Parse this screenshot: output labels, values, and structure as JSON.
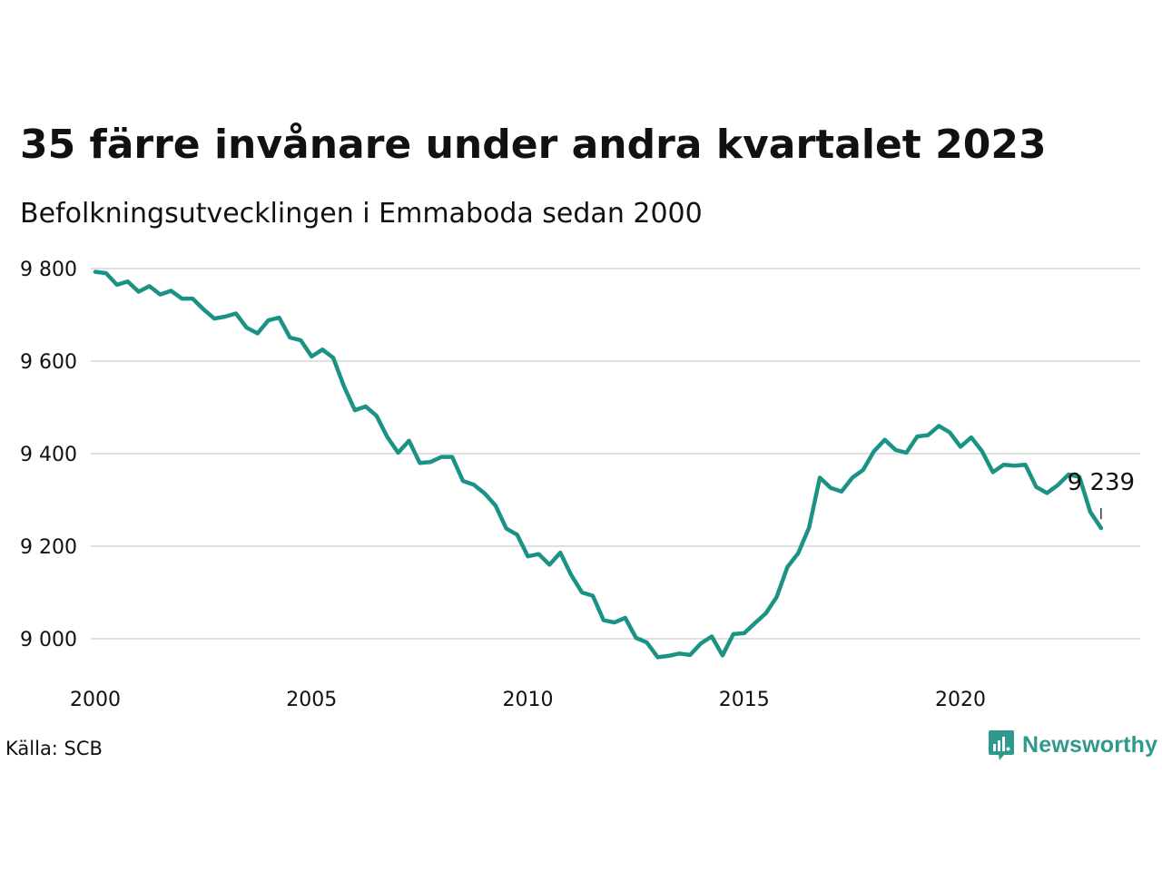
{
  "header": {
    "title": "35 färre invånare under andra kvartalet 2023",
    "subtitle": "Befolkningsutvecklingen i Emmaboda sedan 2000"
  },
  "footer": {
    "source": "Källa: SCB",
    "logo_text": "Newsworthy",
    "logo_icon": "bar-chart-speech-bubble-icon"
  },
  "colors": {
    "line": "#1a9384",
    "grid": "#e0e0e0",
    "text": "#111111",
    "logo": "#2e9a8d"
  },
  "chart_data": {
    "type": "line",
    "title": "35 färre invånare under andra kvartalet 2023",
    "subtitle": "Befolkningsutvecklingen i Emmaboda sedan 2000",
    "xlabel": "",
    "ylabel": "",
    "xlim": [
      2000,
      2024
    ],
    "ylim": [
      8920,
      9820
    ],
    "x_ticks": [
      2000,
      2005,
      2010,
      2015,
      2020
    ],
    "x_tick_labels": [
      "2000",
      "2005",
      "2010",
      "2015",
      "2020"
    ],
    "y_ticks": [
      9000,
      9200,
      9400,
      9600,
      9800
    ],
    "y_tick_labels": [
      "9 000",
      "9 200",
      "9 400",
      "9 600",
      "9 800"
    ],
    "grid": "horizontal",
    "legend": "none",
    "annotation": {
      "label": "9 239",
      "x": "2023-Q2",
      "y": 9239
    },
    "series": [
      {
        "x": [
          "2000-Q1",
          "2000-Q2",
          "2000-Q3",
          "2000-Q4",
          "2001-Q1",
          "2001-Q2",
          "2001-Q3",
          "2001-Q4",
          "2002-Q1",
          "2002-Q2",
          "2002-Q3",
          "2002-Q4",
          "2003-Q1",
          "2003-Q2",
          "2003-Q3",
          "2003-Q4",
          "2004-Q1",
          "2004-Q2",
          "2004-Q3",
          "2004-Q4",
          "2005-Q1",
          "2005-Q2",
          "2005-Q3",
          "2005-Q4",
          "2006-Q1",
          "2006-Q2",
          "2006-Q3",
          "2006-Q4",
          "2007-Q1",
          "2007-Q2",
          "2007-Q3",
          "2007-Q4",
          "2008-Q1",
          "2008-Q2",
          "2008-Q3",
          "2008-Q4",
          "2009-Q1",
          "2009-Q2",
          "2009-Q3",
          "2009-Q4",
          "2010-Q1",
          "2010-Q2",
          "2010-Q3",
          "2010-Q4",
          "2011-Q1",
          "2011-Q2",
          "2011-Q3",
          "2011-Q4",
          "2012-Q1",
          "2012-Q2",
          "2012-Q3",
          "2012-Q4",
          "2013-Q1",
          "2013-Q2",
          "2013-Q3",
          "2013-Q4",
          "2014-Q1",
          "2014-Q2",
          "2014-Q3",
          "2014-Q4",
          "2015-Q1",
          "2015-Q2",
          "2015-Q3",
          "2015-Q4",
          "2016-Q1",
          "2016-Q2",
          "2016-Q3",
          "2016-Q4",
          "2017-Q1",
          "2017-Q2",
          "2017-Q3",
          "2017-Q4",
          "2018-Q1",
          "2018-Q2",
          "2018-Q3",
          "2018-Q4",
          "2019-Q1",
          "2019-Q2",
          "2019-Q3",
          "2019-Q4",
          "2020-Q1",
          "2020-Q2",
          "2020-Q3",
          "2020-Q4",
          "2021-Q1",
          "2021-Q2",
          "2021-Q3",
          "2021-Q4",
          "2022-Q1",
          "2022-Q2",
          "2022-Q3",
          "2022-Q4",
          "2023-Q1",
          "2023-Q2"
        ],
        "values": [
          9793,
          9790,
          9765,
          9772,
          9750,
          9762,
          9744,
          9752,
          9735,
          9735,
          9712,
          9692,
          9696,
          9703,
          9672,
          9660,
          9688,
          9694,
          9651,
          9645,
          9610,
          9625,
          9607,
          9545,
          9494,
          9502,
          9482,
          9436,
          9402,
          9428,
          9380,
          9382,
          9393,
          9393,
          9341,
          9333,
          9314,
          9288,
          9238,
          9225,
          9178,
          9183,
          9160,
          9186,
          9138,
          9100,
          9093,
          9040,
          9035,
          9045,
          9002,
          8992,
          8960,
          8963,
          8968,
          8965,
          8990,
          9005,
          8964,
          9010,
          9012,
          9034,
          9055,
          9090,
          9155,
          9185,
          9240,
          9348,
          9326,
          9318,
          9348,
          9365,
          9405,
          9430,
          9408,
          9402,
          9437,
          9440,
          9460,
          9446,
          9415,
          9435,
          9405,
          9360,
          9376,
          9374,
          9376,
          9328,
          9315,
          9332,
          9355,
          9350,
          9274,
          9239
        ]
      }
    ]
  }
}
